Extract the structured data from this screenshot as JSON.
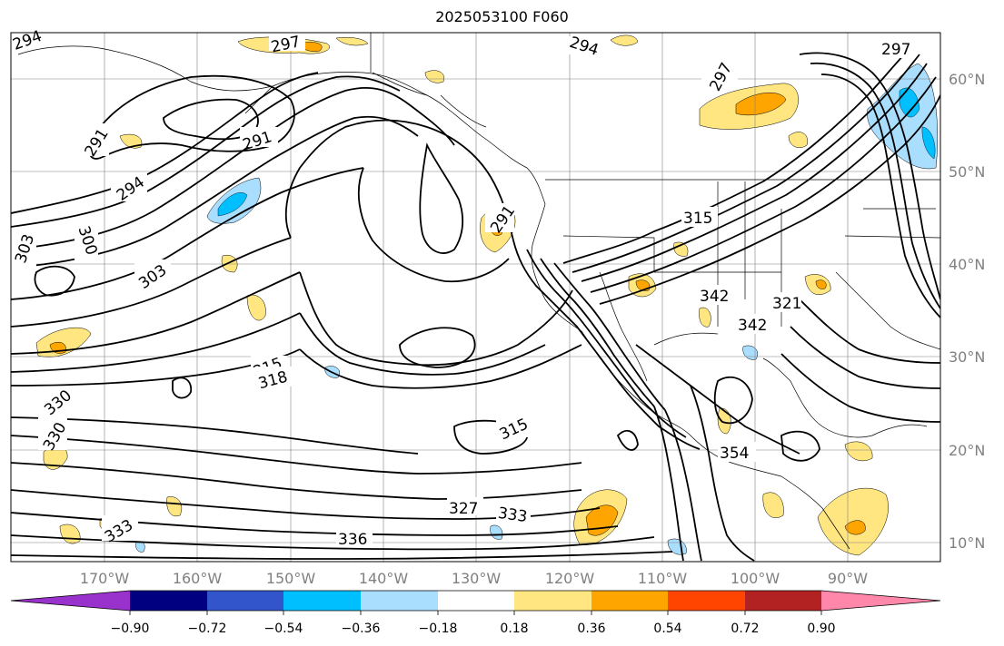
{
  "title": "2025053100 F060",
  "longitude_labels": [
    "170°W",
    "160°W",
    "150°W",
    "140°W",
    "130°W",
    "120°W",
    "110°W",
    "100°W",
    "90°W"
  ],
  "latitude_labels": [
    "60°N",
    "50°N",
    "40°N",
    "30°N",
    "20°N",
    "10°N"
  ],
  "contour_labels": [
    {
      "text": "294",
      "name": "contour-label-294-a"
    },
    {
      "text": "297",
      "name": "contour-label-297-a"
    },
    {
      "text": "294",
      "name": "contour-label-294-b"
    },
    {
      "text": "297",
      "name": "contour-label-297-b"
    },
    {
      "text": "291",
      "name": "contour-label-291-a"
    },
    {
      "text": "291",
      "name": "contour-label-291-b"
    },
    {
      "text": "294",
      "name": "contour-label-294-c"
    },
    {
      "text": "300",
      "name": "contour-label-300"
    },
    {
      "text": "303",
      "name": "contour-label-303-a"
    },
    {
      "text": "303",
      "name": "contour-label-303-b"
    },
    {
      "text": "315",
      "name": "contour-label-315-a"
    },
    {
      "text": "318",
      "name": "contour-label-318"
    },
    {
      "text": "330",
      "name": "contour-label-330-a"
    },
    {
      "text": "330",
      "name": "contour-label-330-b"
    },
    {
      "text": "333",
      "name": "contour-label-333-a"
    },
    {
      "text": "336",
      "name": "contour-label-336"
    },
    {
      "text": "327",
      "name": "contour-label-327"
    },
    {
      "text": "333",
      "name": "contour-label-333-b"
    },
    {
      "text": "315",
      "name": "contour-label-315-b"
    },
    {
      "text": "342",
      "name": "contour-label-342-a"
    },
    {
      "text": "342",
      "name": "contour-label-342-b"
    },
    {
      "text": "354",
      "name": "contour-label-354"
    },
    {
      "text": "291",
      "name": "contour-label-291-c"
    },
    {
      "text": "315",
      "name": "contour-label-315-c"
    },
    {
      "text": "321",
      "name": "contour-label-321"
    },
    {
      "text": "297",
      "name": "contour-label-297-c"
    }
  ],
  "colorbar": {
    "tick_labels": [
      "−0.90",
      "−0.72",
      "−0.54",
      "−0.36",
      "−0.18",
      "0.18",
      "0.36",
      "0.54",
      "0.72",
      "0.90"
    ],
    "colors": [
      "#9932cc",
      "#000080",
      "#3355cc",
      "#00bfff",
      "#aadeff",
      "#ffffff",
      "#ffe680",
      "#ffa500",
      "#ff4500",
      "#b22222",
      "#ff88aa"
    ]
  },
  "shading_colors": {
    "light_yellow": "#ffe680",
    "orange": "#ffa500",
    "light_blue": "#aadeff",
    "sky_blue": "#00bfff"
  }
}
